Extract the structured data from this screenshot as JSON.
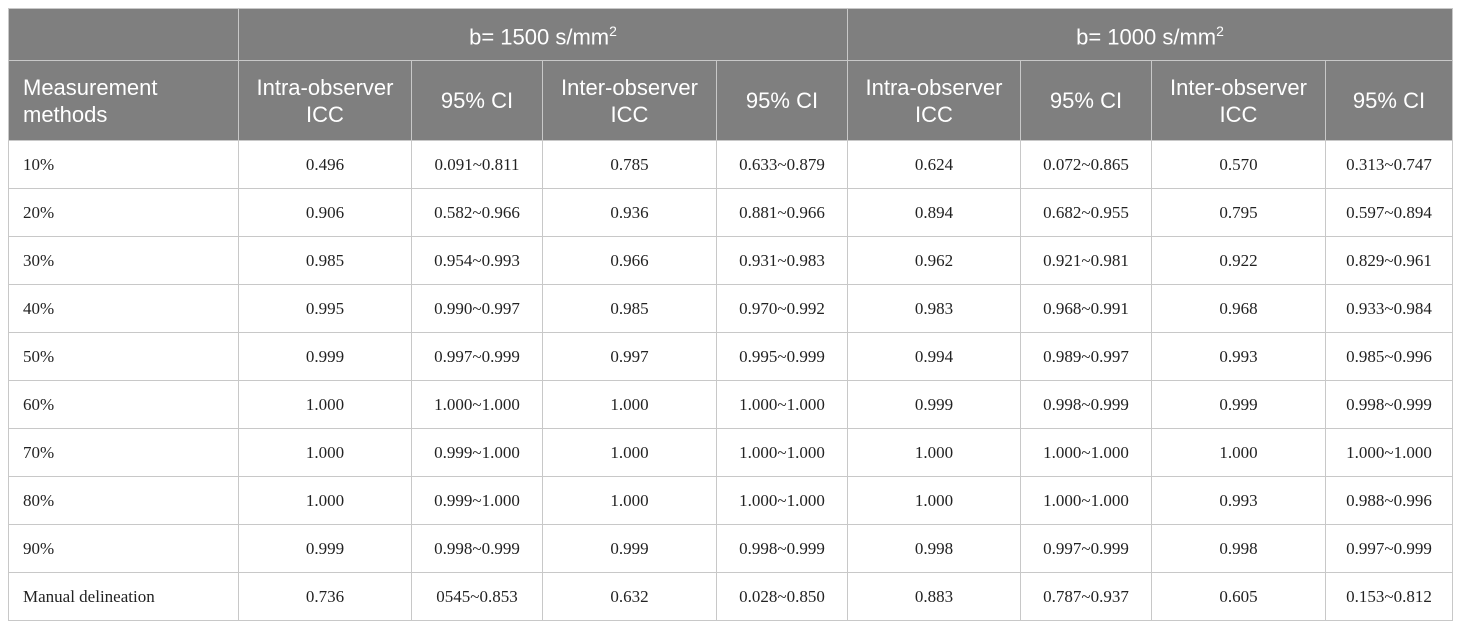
{
  "table": {
    "group_headers": [
      {
        "text": "b= 1500 s/mm",
        "sup": "2"
      },
      {
        "text": "b= 1000 s/mm",
        "sup": "2"
      }
    ],
    "columns": [
      "Measurement methods",
      "Intra-observer ICC",
      "95% CI",
      "Inter-observer ICC",
      "95% CI",
      "Intra-observer ICC",
      "95% CI",
      "Inter-observer ICC",
      "95% CI"
    ],
    "rows": [
      [
        "10%",
        "0.496",
        "0.091~0.811",
        "0.785",
        "0.633~0.879",
        "0.624",
        "0.072~0.865",
        "0.570",
        "0.313~0.747"
      ],
      [
        "20%",
        "0.906",
        "0.582~0.966",
        "0.936",
        "0.881~0.966",
        "0.894",
        "0.682~0.955",
        "0.795",
        "0.597~0.894"
      ],
      [
        "30%",
        "0.985",
        "0.954~0.993",
        "0.966",
        "0.931~0.983",
        "0.962",
        "0.921~0.981",
        "0.922",
        "0.829~0.961"
      ],
      [
        "40%",
        "0.995",
        "0.990~0.997",
        "0.985",
        "0.970~0.992",
        "0.983",
        "0.968~0.991",
        "0.968",
        "0.933~0.984"
      ],
      [
        "50%",
        "0.999",
        "0.997~0.999",
        "0.997",
        "0.995~0.999",
        "0.994",
        "0.989~0.997",
        "0.993",
        "0.985~0.996"
      ],
      [
        "60%",
        "1.000",
        "1.000~1.000",
        "1.000",
        "1.000~1.000",
        "0.999",
        "0.998~0.999",
        "0.999",
        "0.998~0.999"
      ],
      [
        "70%",
        "1.000",
        "0.999~1.000",
        "1.000",
        "1.000~1.000",
        "1.000",
        "1.000~1.000",
        "1.000",
        "1.000~1.000"
      ],
      [
        "80%",
        "1.000",
        "0.999~1.000",
        "1.000",
        "1.000~1.000",
        "1.000",
        "1.000~1.000",
        "0.993",
        "0.988~0.996"
      ],
      [
        "90%",
        "0.999",
        "0.998~0.999",
        "0.999",
        "0.998~0.999",
        "0.998",
        "0.997~0.999",
        "0.998",
        "0.997~0.999"
      ],
      [
        "Manual delineation",
        "0.736",
        "0545~0.853",
        "0.632",
        "0.028~0.850",
        "0.883",
        "0.787~0.937",
        "0.605",
        "0.153~0.812"
      ]
    ]
  }
}
